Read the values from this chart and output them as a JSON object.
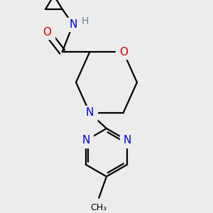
{
  "bg_color": "#ececec",
  "atom_colors": {
    "C": "#000000",
    "N_morph": "#0000cc",
    "N_pyr": "#0000cc",
    "N_H": "#708090",
    "O_ring": "#cc0000",
    "O_carb": "#cc0000"
  },
  "bond_color": "#000000",
  "bond_width": 1.6,
  "figsize": [
    3.0,
    3.0
  ],
  "dpi": 100,
  "xlim": [
    0.3,
    2.7
  ],
  "ylim": [
    0.2,
    2.9
  ]
}
